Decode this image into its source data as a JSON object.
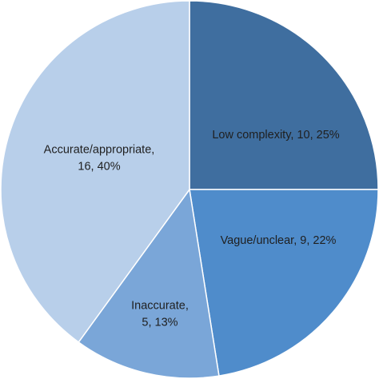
{
  "chart_data": {
    "type": "pie",
    "title": "",
    "start_angle_deg": 0,
    "direction": "clockwise",
    "slices": [
      {
        "category": "Low complexity",
        "count": 10,
        "percent": 25,
        "label_lines": [
          "Low complexity, 10, 25%"
        ],
        "color": "#3f6e9f"
      },
      {
        "category": "Vague/unclear",
        "count": 9,
        "percent": 22,
        "label_lines": [
          "Vague/unclear, 9, 22%"
        ],
        "color": "#4f8ccb"
      },
      {
        "category": "Inaccurate",
        "count": 5,
        "percent": 13,
        "label_lines": [
          "Inaccurate,",
          "5, 13%"
        ],
        "color": "#7aa6d8"
      },
      {
        "category": "Accurate/appropriate",
        "count": 16,
        "percent": 40,
        "label_lines": [
          "Accurate/appropriate,",
          "16, 40%"
        ],
        "color": "#b8cfea"
      }
    ]
  }
}
